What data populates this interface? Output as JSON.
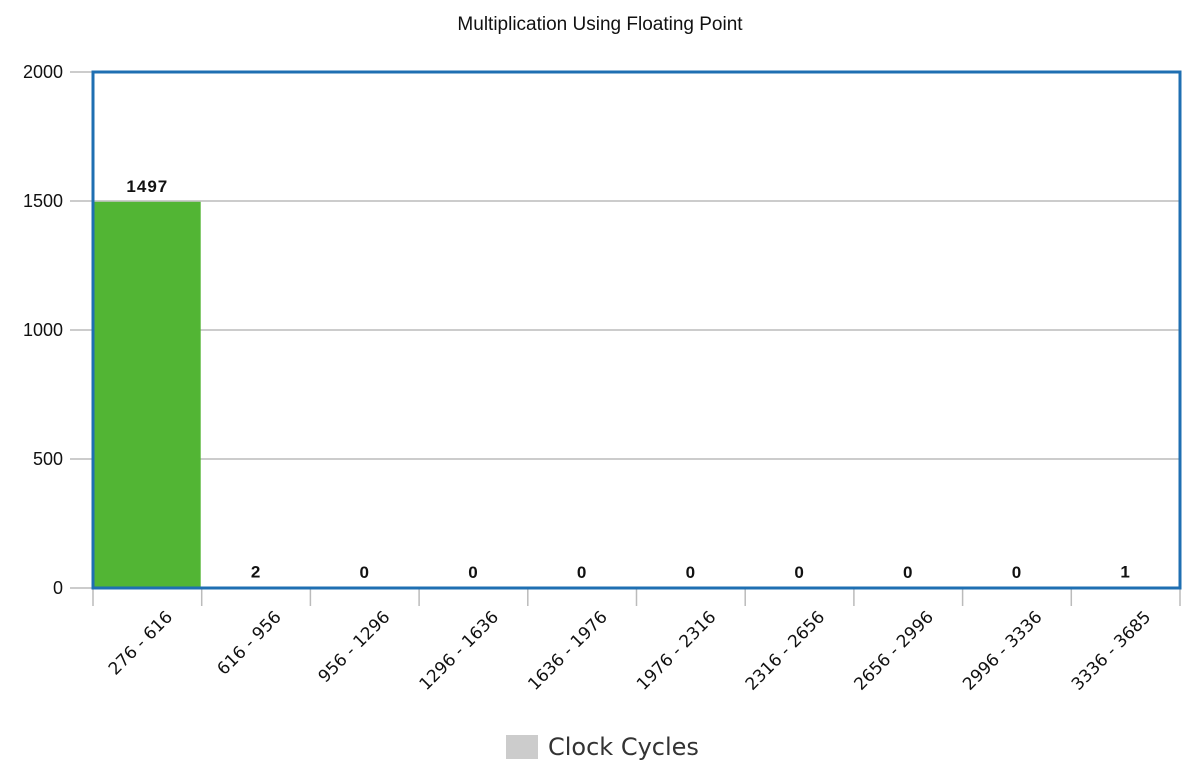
{
  "chart_data": {
    "type": "bar",
    "title": "Multiplication Using Floating Point",
    "categories": [
      "276 - 616",
      "616 - 956",
      "956 - 1296",
      "1296 - 1636",
      "1636 - 1976",
      "1976 - 2316",
      "2316 - 2656",
      "2656 - 2996",
      "2996 - 3336",
      "3336 - 3685"
    ],
    "series": [
      {
        "name": "Clock Cycles",
        "values": [
          1497,
          2,
          0,
          0,
          0,
          0,
          0,
          0,
          0,
          1
        ]
      }
    ],
    "ylim": [
      0,
      2000
    ],
    "yticks": [
      "0",
      "500",
      "1000",
      "1500",
      "2000"
    ],
    "grid": true,
    "legend_position": "bottom",
    "colors": {
      "bar": "#52b534",
      "frame": "#1f6fb2",
      "grid": "#bbbbbb",
      "legend_swatch": "#cccccc"
    }
  }
}
